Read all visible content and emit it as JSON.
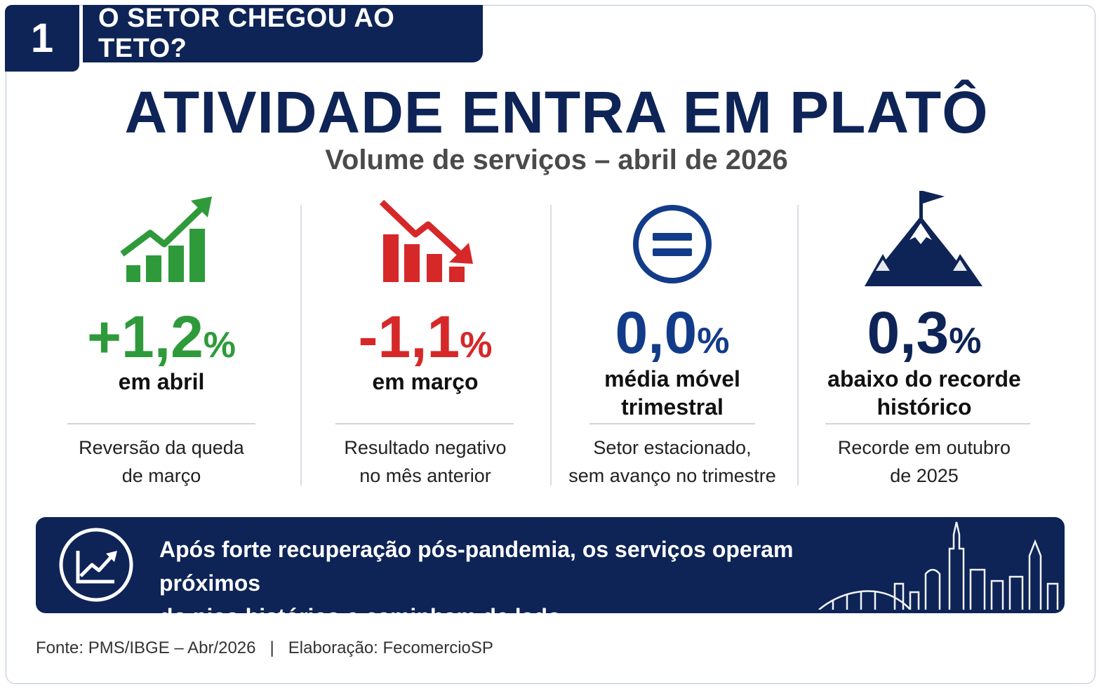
{
  "header": {
    "number": "1",
    "section_title": "O SETOR CHEGOU AO TETO?"
  },
  "title": "ATIVIDADE ENTRA EM PLATÔ",
  "subtitle": "Volume de serviços – abril de 2026",
  "stats": [
    {
      "icon": "bar-chart-up-icon",
      "value": "+1,2",
      "unit": "%",
      "label_lines": [
        "em abril"
      ],
      "desc_lines": [
        "Reversão da queda",
        "de março"
      ],
      "color": "#2e9a3a"
    },
    {
      "icon": "bar-chart-down-icon",
      "value": "-1,1",
      "unit": "%",
      "label_lines": [
        "em março"
      ],
      "desc_lines": [
        "Resultado negativo",
        "no mês anterior"
      ],
      "color": "#d62828"
    },
    {
      "icon": "equals-circle-icon",
      "value": "0,0",
      "unit": "%",
      "label_lines": [
        "média móvel",
        "trimestral"
      ],
      "desc_lines": [
        "Setor estacionado,",
        "sem avanço no trimestre"
      ],
      "color": "#123c8a"
    },
    {
      "icon": "mountain-flag-icon",
      "value": "0,3",
      "unit": "%",
      "label_lines": [
        "abaixo do recorde",
        "histórico"
      ],
      "desc_lines": [
        "Recorde em outubro",
        "de 2025"
      ],
      "color": "#0e2457"
    }
  ],
  "banner": {
    "icon": "trend-up-circle-icon",
    "text_lines": [
      "Após forte recuperação pós-pandemia, os serviços operam próximos",
      "do pico histórico e caminham de lado."
    ]
  },
  "footer": {
    "source": "Fonte: PMS/IBGE – Abr/2026",
    "separator": "|",
    "credit": "Elaboração: FecomercioSP"
  }
}
